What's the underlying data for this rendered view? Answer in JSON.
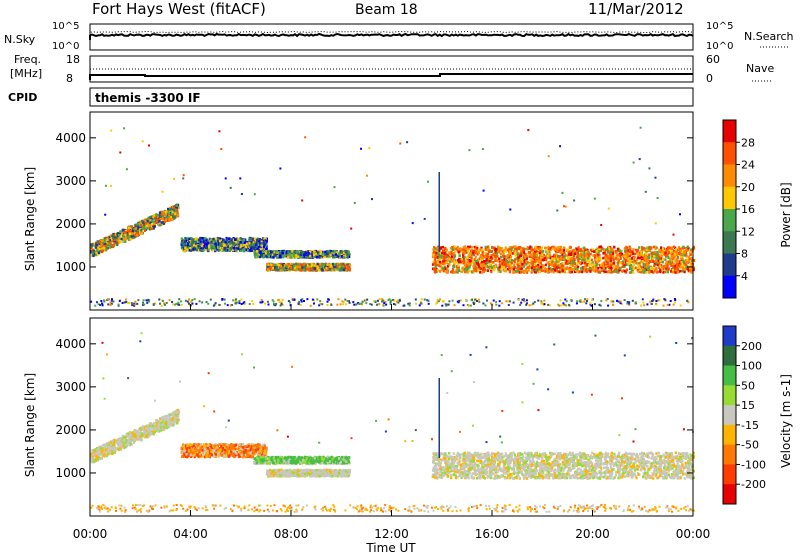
{
  "header": {
    "station": "Fort Hays West (fitACF)",
    "beam": "Beam 18",
    "date": "11/Mar/2012"
  },
  "top_panels": {
    "nsky_label": "N.Sky",
    "nsearch_label": "N.Search",
    "nsky_ticks": [
      "10^5",
      "10^0"
    ],
    "nsearch_ticks": [
      "10^5",
      "10^0"
    ],
    "freq_label_1": "Freq.",
    "freq_label_2": "[MHz]",
    "freq_ticks": [
      "18",
      "8"
    ],
    "nave_label": "Nave",
    "nave_ticks": [
      "60",
      "0"
    ],
    "cpid_label": "CPID",
    "cpid_text": "themis -3300 IF"
  },
  "colors": {
    "power_scale": [
      "#0000ff",
      "#1e3c8c",
      "#3c7850",
      "#4aa84a",
      "#ffc800",
      "#ff8c00",
      "#ff5000",
      "#e60000"
    ],
    "velocity_scale": [
      "#1e3cc8",
      "#2d6e3c",
      "#46be46",
      "#96dc32",
      "#c8c8c0",
      "#ffb400",
      "#ff7800",
      "#ff3c00",
      "#e60000"
    ]
  },
  "chart_data": [
    {
      "type": "heatmap",
      "name": "power",
      "xlabel": "",
      "ylabel": "Slant Range [km]",
      "xlim": [
        "00:00",
        "24:00"
      ],
      "ylim": [
        0,
        4600
      ],
      "yticks": [
        "1000",
        "2000",
        "3000",
        "4000"
      ],
      "colorbar": {
        "label": "Power [dB]",
        "ticks": [
          "4",
          "8",
          "12",
          "16",
          "20",
          "24",
          "28"
        ]
      },
      "bands": [
        {
          "x": [
            0.0,
            3.5
          ],
          "y": [
            1250,
            2400
          ],
          "level": "mid-high"
        },
        {
          "x": [
            3.6,
            7.0
          ],
          "y": [
            1400,
            1700
          ],
          "level": "mid"
        },
        {
          "x": [
            6.5,
            10.3
          ],
          "y": [
            1250,
            1400
          ],
          "level": "mid"
        },
        {
          "x": [
            7.0,
            10.3
          ],
          "y": [
            950,
            1100
          ],
          "level": "mid-high"
        },
        {
          "x": [
            13.6,
            24.0
          ],
          "y": [
            900,
            1500
          ],
          "level": "high"
        }
      ]
    },
    {
      "type": "heatmap",
      "name": "velocity",
      "xlabel": "Time UT",
      "ylabel": "Slant Range [km]",
      "xlim": [
        "00:00",
        "24:00"
      ],
      "ylim": [
        0,
        4600
      ],
      "xticks": [
        "00:00",
        "04:00",
        "08:00",
        "12:00",
        "16:00",
        "20:00",
        "00:00"
      ],
      "yticks": [
        "1000",
        "2000",
        "3000",
        "4000"
      ],
      "colorbar": {
        "label": "Velocity [m s-1]",
        "ticks": [
          "200",
          "100",
          "50",
          "15",
          "-15",
          "-50",
          "-100",
          "-200"
        ]
      },
      "bands": [
        {
          "x": [
            0.0,
            3.5
          ],
          "y": [
            1250,
            2400
          ],
          "level": "near-zero"
        },
        {
          "x": [
            3.6,
            7.0
          ],
          "y": [
            1400,
            1700
          ],
          "level": "negative"
        },
        {
          "x": [
            6.5,
            10.3
          ],
          "y": [
            1250,
            1400
          ],
          "level": "positive"
        },
        {
          "x": [
            7.0,
            10.3
          ],
          "y": [
            950,
            1100
          ],
          "level": "near-zero"
        },
        {
          "x": [
            13.6,
            24.0
          ],
          "y": [
            900,
            1500
          ],
          "level": "near-zero"
        }
      ]
    }
  ]
}
